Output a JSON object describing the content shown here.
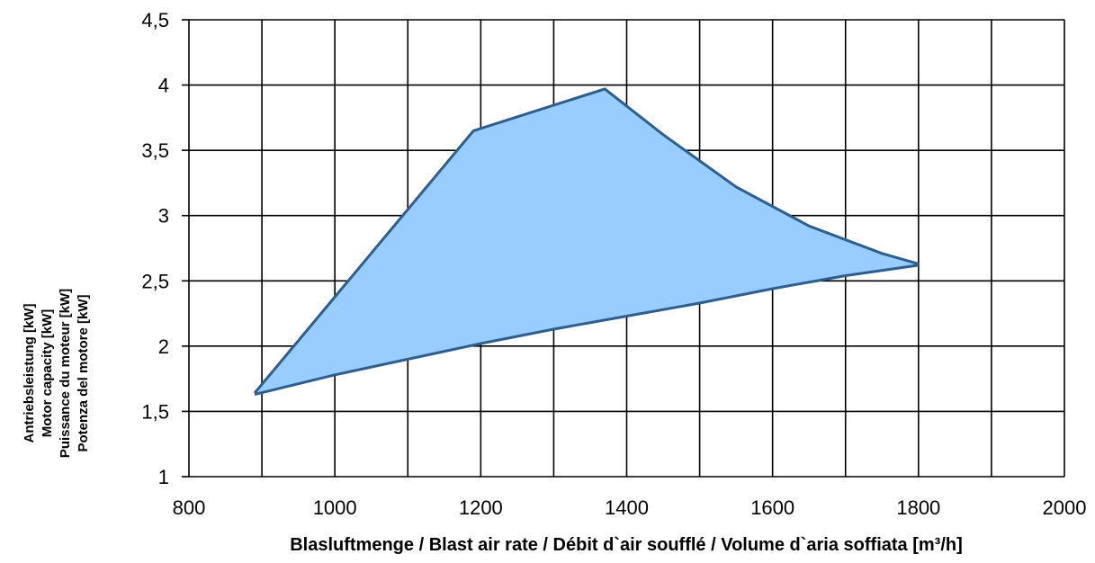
{
  "chart_data": {
    "type": "area",
    "title": "",
    "xlabel": "Blasluftmenge / Blast air rate / Débit d`air soufflé / Volume d`aria soffiata [m³/h]",
    "ylabel_lines": [
      "Antriebsleistung [kW]",
      "Motor capacity [kW]",
      "Puissance du moteur [kW]",
      "Potenza del motore [kW]"
    ],
    "xlim": [
      800,
      2000
    ],
    "ylim": [
      1,
      4.5
    ],
    "x_ticks": [
      800,
      1000,
      1200,
      1400,
      1600,
      1800,
      2000
    ],
    "x_tick_labels": [
      "800",
      "1000",
      "1200",
      "1400",
      "1600",
      "1800",
      "2000"
    ],
    "y_ticks": [
      1,
      1.5,
      2,
      2.5,
      3,
      3.5,
      4,
      4.5
    ],
    "y_tick_labels": [
      "1",
      "1,5",
      "2",
      "2,5",
      "3",
      "3,5",
      "4",
      "4,5"
    ],
    "grid_x_step": 100,
    "grid_y_step": 0.5,
    "grid": true,
    "fill_color": "#99ccff",
    "line_color": "#2f5d8e",
    "upper_boundary": [
      {
        "x": 890,
        "y": 1.64
      },
      {
        "x": 1190,
        "y": 3.65
      },
      {
        "x": 1370,
        "y": 3.97
      },
      {
        "x": 1450,
        "y": 3.62
      },
      {
        "x": 1550,
        "y": 3.22
      },
      {
        "x": 1650,
        "y": 2.92
      },
      {
        "x": 1750,
        "y": 2.71
      },
      {
        "x": 1800,
        "y": 2.63
      }
    ],
    "lower_boundary": [
      {
        "x": 890,
        "y": 1.63
      },
      {
        "x": 1000,
        "y": 1.78
      },
      {
        "x": 1100,
        "y": 1.9
      },
      {
        "x": 1200,
        "y": 2.02
      },
      {
        "x": 1300,
        "y": 2.13
      },
      {
        "x": 1400,
        "y": 2.23
      },
      {
        "x": 1500,
        "y": 2.33
      },
      {
        "x": 1600,
        "y": 2.44
      },
      {
        "x": 1700,
        "y": 2.54
      },
      {
        "x": 1800,
        "y": 2.62
      }
    ]
  }
}
